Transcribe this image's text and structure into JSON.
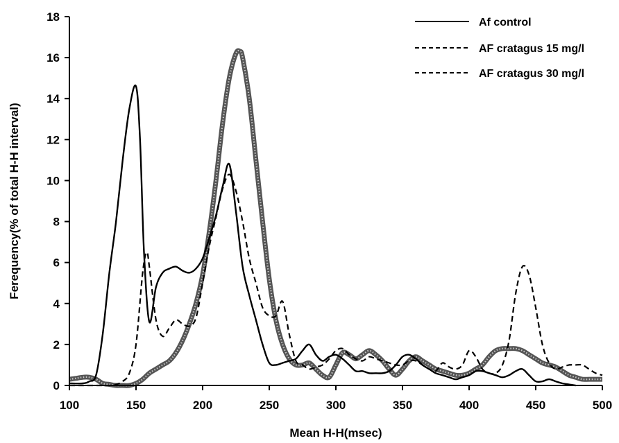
{
  "chart_data": {
    "type": "line",
    "xlabel": "Mean H-H(msec)",
    "ylabel": "Ferequency(% of total H-H interval)",
    "xlim": [
      100,
      500
    ],
    "ylim": [
      0,
      18
    ],
    "xticks": [
      100,
      150,
      200,
      250,
      300,
      350,
      400,
      450,
      500
    ],
    "yticks": [
      0,
      2,
      4,
      6,
      8,
      10,
      12,
      14,
      16,
      18
    ],
    "grid": false,
    "legend_position": "top-right",
    "series": [
      {
        "name": "Af control",
        "style": "solid",
        "color": "#000000",
        "x": [
          100,
          110,
          115,
          120,
          125,
          130,
          135,
          140,
          145,
          150,
          153,
          156,
          160,
          165,
          170,
          175,
          180,
          185,
          190,
          195,
          200,
          205,
          210,
          215,
          220,
          225,
          230,
          235,
          240,
          245,
          250,
          255,
          260,
          265,
          270,
          275,
          280,
          285,
          290,
          295,
          300,
          305,
          310,
          315,
          320,
          325,
          330,
          335,
          340,
          345,
          350,
          355,
          360,
          365,
          370,
          375,
          380,
          385,
          390,
          395,
          400,
          405,
          410,
          415,
          420,
          425,
          430,
          435,
          440,
          445,
          450,
          455,
          460,
          465,
          470,
          475,
          480
        ],
        "y": [
          0.1,
          0.1,
          0.2,
          0.5,
          2.5,
          5.5,
          8.0,
          11.0,
          13.5,
          14.6,
          12.0,
          6.5,
          3.1,
          4.8,
          5.5,
          5.7,
          5.8,
          5.6,
          5.5,
          5.7,
          6.2,
          7.2,
          8.3,
          9.7,
          10.8,
          8.5,
          5.8,
          4.4,
          3.2,
          2.0,
          1.1,
          1.0,
          1.1,
          1.2,
          1.3,
          1.7,
          2.0,
          1.5,
          1.2,
          1.4,
          1.5,
          1.3,
          1.0,
          0.7,
          0.7,
          0.6,
          0.6,
          0.6,
          0.7,
          1.0,
          1.4,
          1.5,
          1.3,
          1.0,
          0.8,
          0.6,
          0.5,
          0.4,
          0.3,
          0.4,
          0.5,
          0.7,
          0.7,
          0.6,
          0.5,
          0.4,
          0.5,
          0.7,
          0.8,
          0.5,
          0.2,
          0.2,
          0.3,
          0.2,
          0.1,
          0.05,
          0.0
        ]
      },
      {
        "name": "AF cratagus 15 mg/l",
        "style": "dashed",
        "color": "#000000",
        "x": [
          100,
          110,
          120,
          125,
          130,
          135,
          140,
          145,
          150,
          155,
          158,
          160,
          165,
          170,
          175,
          180,
          185,
          190,
          195,
          200,
          205,
          210,
          215,
          220,
          225,
          230,
          235,
          240,
          245,
          250,
          255,
          260,
          265,
          270,
          275,
          280,
          285,
          290,
          295,
          300,
          305,
          310,
          315,
          320,
          325,
          330,
          335,
          340,
          345,
          350,
          355,
          360,
          365,
          370,
          375,
          380,
          385,
          390,
          395,
          400,
          405,
          410,
          415,
          420,
          425,
          430,
          435,
          440,
          445,
          450,
          455,
          460,
          465,
          470,
          475,
          480,
          485,
          490,
          495,
          500
        ],
        "y": [
          0.0,
          0.0,
          0.0,
          0.0,
          0.0,
          0.05,
          0.2,
          0.6,
          2.0,
          5.5,
          6.5,
          5.8,
          3.2,
          2.4,
          2.8,
          3.2,
          3.0,
          2.9,
          3.3,
          5.0,
          6.8,
          8.2,
          9.6,
          10.3,
          9.5,
          8.0,
          6.2,
          5.0,
          3.8,
          3.4,
          3.4,
          4.1,
          2.5,
          1.2,
          1.0,
          0.8,
          0.9,
          1.0,
          1.3,
          1.7,
          1.8,
          1.5,
          1.3,
          1.2,
          1.4,
          1.3,
          1.2,
          1.1,
          1.0,
          1.0,
          1.2,
          1.2,
          1.0,
          0.8,
          0.7,
          1.1,
          0.9,
          0.8,
          1.0,
          1.7,
          1.4,
          0.8,
          0.6,
          0.6,
          1.0,
          2.2,
          4.5,
          5.8,
          5.4,
          3.8,
          2.0,
          1.1,
          0.8,
          0.9,
          1.0,
          1.0,
          1.0,
          0.8,
          0.6,
          0.5
        ]
      },
      {
        "name": "AF cratagus 30 mg/l",
        "style": "thick-dotted",
        "color": "#6e6e6e",
        "x": [
          100,
          105,
          110,
          115,
          120,
          125,
          130,
          135,
          140,
          145,
          150,
          155,
          160,
          165,
          170,
          175,
          180,
          185,
          190,
          195,
          200,
          205,
          210,
          215,
          220,
          225,
          228,
          230,
          235,
          240,
          245,
          250,
          255,
          260,
          265,
          270,
          275,
          280,
          285,
          290,
          295,
          300,
          305,
          310,
          315,
          320,
          325,
          330,
          335,
          340,
          345,
          350,
          355,
          360,
          365,
          370,
          375,
          380,
          385,
          390,
          395,
          400,
          405,
          410,
          415,
          420,
          425,
          430,
          435,
          440,
          445,
          450,
          455,
          460,
          465,
          470,
          475,
          480,
          485,
          490,
          495,
          500
        ],
        "y": [
          0.3,
          0.35,
          0.4,
          0.4,
          0.3,
          0.1,
          0.05,
          0.0,
          0.0,
          0.0,
          0.1,
          0.3,
          0.6,
          0.8,
          1.0,
          1.2,
          1.6,
          2.2,
          3.0,
          4.0,
          5.4,
          7.5,
          10.0,
          12.8,
          15.0,
          16.2,
          16.3,
          16.0,
          14.0,
          11.0,
          8.0,
          5.2,
          3.2,
          2.0,
          1.3,
          1.0,
          1.0,
          1.1,
          0.8,
          0.5,
          0.4,
          1.0,
          1.6,
          1.5,
          1.3,
          1.5,
          1.7,
          1.5,
          1.2,
          0.8,
          0.5,
          0.8,
          1.2,
          1.4,
          1.2,
          1.0,
          0.8,
          0.7,
          0.6,
          0.5,
          0.5,
          0.6,
          0.8,
          1.0,
          1.4,
          1.7,
          1.8,
          1.8,
          1.8,
          1.7,
          1.5,
          1.3,
          1.1,
          1.0,
          0.9,
          0.7,
          0.5,
          0.4,
          0.3,
          0.3,
          0.3,
          0.3
        ]
      }
    ]
  }
}
